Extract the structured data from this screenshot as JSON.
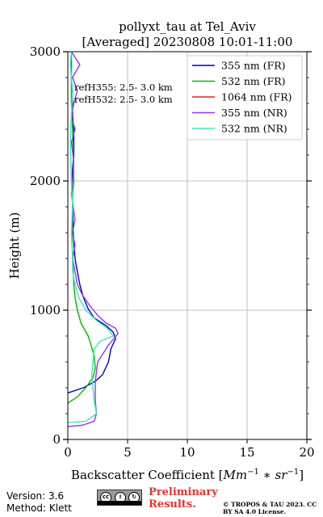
{
  "chart_data": {
    "type": "line",
    "title": "pollyxt_tau at Tel_Aviv",
    "subtitle": "[Averaged] 20230808 10:01-11:00",
    "xlabel": "Backscatter Coefficient [Mm⁻¹ * sr⁻¹]",
    "ylabel": "Height (m)",
    "xlim": [
      0,
      20
    ],
    "ylim": [
      0,
      3000
    ],
    "xticks": [
      "0",
      "5",
      "10",
      "15",
      "20"
    ],
    "yticks": [
      "0",
      "1000",
      "2000",
      "3000"
    ],
    "grid": true,
    "legend_position": "top-right",
    "annotations": [
      "refH355:  2.5- 3.0 km",
      "refH532:  2.5- 3.0 km"
    ],
    "series": [
      {
        "name": "355 nm (FR)",
        "color": "#0000cc",
        "x": [
          0.0,
          1.3,
          2.3,
          2.9,
          3.4,
          3.6,
          4.0,
          3.8,
          3.2,
          2.2,
          1.7,
          1.3,
          1.0,
          0.8,
          0.6,
          0.45,
          0.4,
          0.35,
          0.4,
          0.5,
          0.5,
          0.4,
          0.4,
          0.3,
          0.3,
          0.3
        ],
        "y": [
          360,
          400,
          450,
          500,
          600,
          700,
          780,
          830,
          880,
          940,
          1010,
          1100,
          1200,
          1300,
          1400,
          1600,
          1800,
          2000,
          2100,
          2200,
          2400,
          2500,
          2600,
          2800,
          2900,
          3000
        ]
      },
      {
        "name": "532 nm (FR)",
        "color": "#00bb00",
        "x": [
          0.0,
          0.8,
          1.5,
          2.1,
          2.3,
          2.2,
          1.7,
          1.1,
          0.8,
          0.6,
          0.5,
          0.4,
          0.35,
          0.4,
          0.5,
          0.45,
          0.4,
          0.3,
          0.3,
          0.3
        ],
        "y": [
          280,
          330,
          400,
          480,
          550,
          650,
          800,
          900,
          1000,
          1100,
          1200,
          1400,
          1600,
          1900,
          2000,
          2200,
          2400,
          2600,
          2800,
          3000
        ]
      },
      {
        "name": "1064 nm (FR)",
        "color": "#dd2222",
        "x": [],
        "y": []
      },
      {
        "name": "355 nm (NR)",
        "color": "#9933ff",
        "x": [
          0.0,
          1.2,
          2.2,
          2.4,
          2.3,
          2.3,
          2.5,
          3.4,
          4.2,
          4.0,
          3.2,
          2.5,
          1.8,
          1.2,
          0.8,
          0.6,
          0.4,
          0.6,
          0.4,
          0.6,
          0.3,
          0.4,
          0.5,
          0.3,
          0.6,
          0.3,
          0.5,
          0.8,
          0.4,
          1.0,
          0.3
        ],
        "y": [
          100,
          110,
          140,
          200,
          300,
          450,
          600,
          730,
          820,
          860,
          900,
          960,
          1040,
          1120,
          1200,
          1300,
          1400,
          1500,
          1600,
          1700,
          1900,
          2000,
          2150,
          2300,
          2400,
          2500,
          2600,
          2700,
          2800,
          2900,
          3000
        ]
      },
      {
        "name": "532 nm (NR)",
        "color": "#33eebb",
        "x": [
          0.0,
          1.5,
          2.4,
          2.2,
          2.0,
          2.2,
          2.7,
          3.8,
          3.3,
          2.4,
          1.5,
          0.9,
          0.6,
          0.4,
          0.4,
          0.3,
          0.4,
          0.3,
          0.2,
          0.3,
          0.4,
          0.2,
          0.3
        ],
        "y": [
          130,
          140,
          200,
          300,
          500,
          700,
          760,
          800,
          860,
          920,
          1000,
          1100,
          1200,
          1300,
          1400,
          1600,
          1800,
          2000,
          2300,
          2500,
          2700,
          2900,
          3000
        ]
      }
    ]
  },
  "footer": {
    "version": "Version: 3.6",
    "method": "Method: Klett",
    "preliminary": "Preliminary Results.",
    "copyright": "© TROPOS & TAU 2023. CC BY SA 4.0 License.",
    "cc_badge_icons": [
      "cc-icon",
      "by-icon",
      "sa-icon"
    ],
    "cc_badge_labels": [
      "cc",
      "i",
      "↻"
    ]
  }
}
